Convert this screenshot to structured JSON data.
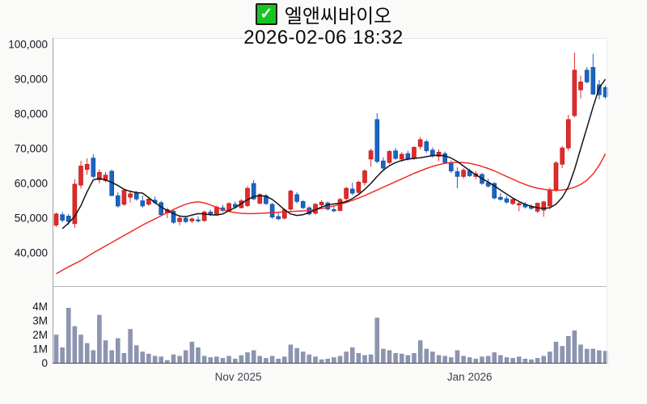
{
  "header": {
    "checkbox_glyph": "✓",
    "title": "엘앤씨바이오",
    "datetime": "2026-02-06 18:32"
  },
  "colors": {
    "up": "#e22a2a",
    "up_border": "#b31212",
    "down": "#1a64c4",
    "down_border": "#0d4a9e",
    "ma_short": "#141414",
    "ma_long": "#ee2c2c",
    "volume_bar": "#8d95b0",
    "volume_bar_border": "#7d86a4",
    "label": "#16161f",
    "month_label": "#3a3f4e",
    "plot_bg": "#ffffff",
    "page_bg": "#fafaf9",
    "checkbox_green": "#17c522",
    "axis_dark": "#4d4d4d",
    "axis_gray": "#a0a0a0",
    "divider_gray": "#b5b5b5"
  },
  "chart_data": {
    "type": "candlestick+volume",
    "title": "엘앤씨바이오",
    "timestamp": "2026-02-06 18:32",
    "legend_position": "none",
    "grid": false,
    "price_axis": {
      "min": 33000,
      "max": 101000,
      "ticks": [
        {
          "label": "100,000",
          "value": 100000
        },
        {
          "label": "90,000",
          "value": 90000
        },
        {
          "label": "80,000",
          "value": 80000
        },
        {
          "label": "70,000",
          "value": 70000
        },
        {
          "label": "60,000",
          "value": 60000
        },
        {
          "label": "50,000",
          "value": 50000
        },
        {
          "label": "40,000",
          "value": 40000
        }
      ]
    },
    "volume_axis": {
      "unit": "M",
      "ticks": [
        {
          "label": "4M",
          "value": 4
        },
        {
          "label": "3M",
          "value": 3
        },
        {
          "label": "2M",
          "value": 2
        },
        {
          "label": "1M",
          "value": 1
        },
        {
          "label": "0",
          "value": 0
        }
      ]
    },
    "x_axis": {
      "month_labels": [
        {
          "label": "Nov 2025",
          "index": 29.5
        },
        {
          "label": "Jan 2026",
          "index": 67
        }
      ]
    },
    "candles": [
      [
        48000,
        51600,
        47500,
        51200
      ],
      [
        51000,
        51800,
        48800,
        49400
      ],
      [
        50600,
        51200,
        48000,
        49000
      ],
      [
        48400,
        61200,
        47200,
        59800
      ],
      [
        59500,
        66500,
        58500,
        65000
      ],
      [
        64000,
        67200,
        62500,
        65500
      ],
      [
        67300,
        68400,
        61500,
        62000
      ],
      [
        61000,
        64000,
        60000,
        63200
      ],
      [
        60800,
        63300,
        60300,
        62400
      ],
      [
        63500,
        64000,
        56300,
        56500
      ],
      [
        56500,
        57500,
        53000,
        53500
      ],
      [
        54000,
        58500,
        53500,
        58000
      ],
      [
        56000,
        58000,
        54500,
        57000
      ],
      [
        57200,
        57800,
        55000,
        55500
      ],
      [
        55000,
        56500,
        53000,
        53500
      ],
      [
        54000,
        56000,
        53500,
        55500
      ],
      [
        55200,
        56200,
        54000,
        54500
      ],
      [
        54500,
        55000,
        50500,
        51000
      ],
      [
        51500,
        53000,
        50000,
        52500
      ],
      [
        52000,
        52500,
        48300,
        48800
      ],
      [
        49000,
        50500,
        48000,
        50000
      ],
      [
        50000,
        50800,
        48500,
        49000
      ],
      [
        49200,
        50200,
        48600,
        49800
      ],
      [
        49500,
        50500,
        48800,
        49200
      ],
      [
        49300,
        52200,
        49000,
        51800
      ],
      [
        51800,
        52500,
        50600,
        51200
      ],
      [
        51000,
        53600,
        50800,
        53200
      ],
      [
        53000,
        53800,
        51800,
        52200
      ],
      [
        52000,
        54600,
        51800,
        54200
      ],
      [
        54000,
        54800,
        52800,
        53200
      ],
      [
        53000,
        55500,
        52800,
        55000
      ],
      [
        53600,
        59200,
        53200,
        58600
      ],
      [
        60000,
        61000,
        55200,
        55500
      ],
      [
        54300,
        57200,
        54000,
        56800
      ],
      [
        56500,
        57000,
        53800,
        54200
      ],
      [
        54000,
        54400,
        49800,
        50300
      ],
      [
        50500,
        51500,
        49400,
        49800
      ],
      [
        50000,
        52800,
        49600,
        52400
      ],
      [
        52600,
        58200,
        52200,
        57800
      ],
      [
        56800,
        57500,
        54200,
        54800
      ],
      [
        54800,
        55200,
        52600,
        53000
      ],
      [
        53000,
        53400,
        50800,
        51200
      ],
      [
        51400,
        54400,
        51000,
        54000
      ],
      [
        53800,
        55200,
        53200,
        54600
      ],
      [
        54400,
        54800,
        52200,
        52600
      ],
      [
        52500,
        53300,
        51700,
        52100
      ],
      [
        52200,
        55800,
        52000,
        55400
      ],
      [
        55600,
        59000,
        55000,
        58600
      ],
      [
        58400,
        60200,
        56600,
        57200
      ],
      [
        57400,
        60800,
        57000,
        60400
      ],
      [
        60200,
        64000,
        59400,
        63600
      ],
      [
        67000,
        70000,
        64800,
        69400
      ],
      [
        78400,
        80200,
        65800,
        66300
      ],
      [
        66500,
        67500,
        63800,
        64400
      ],
      [
        66000,
        69600,
        65600,
        69200
      ],
      [
        69400,
        70200,
        66800,
        67200
      ],
      [
        67000,
        69000,
        66200,
        68400
      ],
      [
        68600,
        69400,
        66600,
        67000
      ],
      [
        67200,
        70800,
        66800,
        70400
      ],
      [
        70600,
        73400,
        69800,
        72600
      ],
      [
        72000,
        72600,
        68800,
        69400
      ],
      [
        69600,
        70400,
        67400,
        68000
      ],
      [
        67800,
        69800,
        66400,
        69000
      ],
      [
        68600,
        69200,
        65600,
        66000
      ],
      [
        65800,
        66600,
        63000,
        63600
      ],
      [
        63400,
        64600,
        58600,
        62000
      ],
      [
        62000,
        64400,
        61400,
        63800
      ],
      [
        63600,
        64200,
        61800,
        62200
      ],
      [
        62000,
        63600,
        61200,
        62800
      ],
      [
        62600,
        63000,
        59600,
        60000
      ],
      [
        60200,
        61400,
        58800,
        59200
      ],
      [
        60000,
        60400,
        55400,
        55800
      ],
      [
        56000,
        57200,
        55000,
        55400
      ],
      [
        55600,
        56400,
        54200,
        54600
      ],
      [
        54200,
        55800,
        53800,
        55400
      ],
      [
        53800,
        54600,
        52000,
        54200
      ],
      [
        54000,
        54600,
        52800,
        53200
      ],
      [
        53400,
        54000,
        52400,
        52800
      ],
      [
        52000,
        54500,
        51400,
        54300
      ],
      [
        52300,
        55000,
        50400,
        54700
      ],
      [
        53500,
        58800,
        52500,
        58200
      ],
      [
        58200,
        66400,
        57600,
        65900
      ],
      [
        65500,
        70800,
        64400,
        70200
      ],
      [
        70200,
        79800,
        69400,
        78400
      ],
      [
        79500,
        97700,
        79000,
        92600
      ],
      [
        86900,
        91000,
        84500,
        89200
      ],
      [
        92600,
        93500,
        88800,
        89200
      ],
      [
        93400,
        97300,
        85500,
        85700
      ],
      [
        88400,
        89800,
        84200,
        85500
      ],
      [
        87600,
        88200,
        84400,
        84900
      ]
    ],
    "volumes_m": [
      2.0,
      1.1,
      3.9,
      2.6,
      2.0,
      1.4,
      0.9,
      3.4,
      1.6,
      0.9,
      1.75,
      0.7,
      2.4,
      1.25,
      0.8,
      0.65,
      0.5,
      0.45,
      0.2,
      0.6,
      0.5,
      0.9,
      1.5,
      1.1,
      0.5,
      0.4,
      0.45,
      0.35,
      0.5,
      0.3,
      0.55,
      0.75,
      0.9,
      0.5,
      0.35,
      0.5,
      0.3,
      0.45,
      1.3,
      1.05,
      0.8,
      0.6,
      0.45,
      0.25,
      0.3,
      0.4,
      0.5,
      0.8,
      1.1,
      0.7,
      0.55,
      0.6,
      3.2,
      1.0,
      0.9,
      0.7,
      0.65,
      0.55,
      0.7,
      1.6,
      1.0,
      0.8,
      0.55,
      0.5,
      0.4,
      0.9,
      0.5,
      0.4,
      0.3,
      0.45,
      0.5,
      0.75,
      0.55,
      0.4,
      0.35,
      0.45,
      0.3,
      0.25,
      0.35,
      0.5,
      0.8,
      1.5,
      1.2,
      1.9,
      2.3,
      1.3,
      1.0,
      1.0,
      0.9,
      0.85
    ],
    "ma_short": [
      null,
      47000,
      48600,
      50500,
      53600,
      57600,
      61000,
      61500,
      61000,
      60300,
      59400,
      58300,
      57700,
      57400,
      57200,
      55900,
      54500,
      53200,
      52200,
      51300,
      50600,
      50400,
      50900,
      51300,
      51200,
      51000,
      50900,
      51200,
      52200,
      53000,
      54200,
      55300,
      56200,
      56500,
      56300,
      55400,
      54000,
      52400,
      51200,
      50800,
      51000,
      51600,
      52400,
      53200,
      53800,
      54100,
      54300,
      54800,
      55600,
      56800,
      58300,
      60000,
      62000,
      63800,
      65100,
      66000,
      66600,
      67000,
      67200,
      67400,
      67700,
      68000,
      68100,
      67900,
      67300,
      66300,
      65000,
      63700,
      62500,
      61400,
      60400,
      59300,
      58100,
      56900,
      55800,
      54800,
      54000,
      53400,
      53000,
      52800,
      53000,
      54000,
      56000,
      59000,
      64000,
      70000,
      76000,
      82000,
      87500,
      90000
    ],
    "ma_long": [
      34000,
      35000,
      36000,
      36900,
      37800,
      38900,
      40000,
      41000,
      42000,
      43000,
      44000,
      45000,
      46000,
      47000,
      48000,
      48900,
      49800,
      50700,
      51600,
      52500,
      53300,
      54000,
      54500,
      54700,
      54400,
      53800,
      53100,
      52400,
      51900,
      51600,
      51400,
      51300,
      51300,
      51400,
      51500,
      51600,
      51700,
      51800,
      51900,
      52000,
      52100,
      52300,
      52500,
      52800,
      53100,
      53500,
      54000,
      54500,
      55100,
      55800,
      56500,
      57300,
      58100,
      58900,
      59700,
      60500,
      61300,
      62100,
      62900,
      63600,
      64300,
      64900,
      65400,
      65800,
      66000,
      66100,
      66000,
      65800,
      65400,
      64900,
      64300,
      63600,
      62800,
      62000,
      61200,
      60400,
      59700,
      59100,
      58600,
      58300,
      58100,
      58000,
      58100,
      58400,
      58900,
      59700,
      60900,
      62700,
      65200,
      68500
    ]
  }
}
